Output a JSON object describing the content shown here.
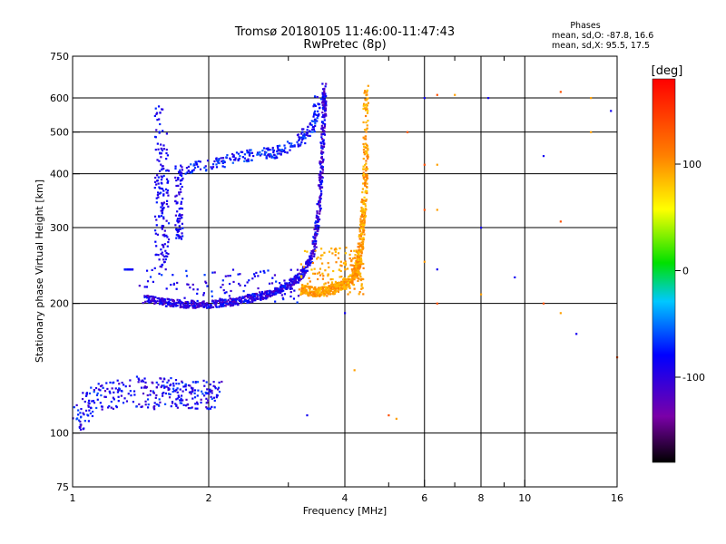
{
  "chart_data": {
    "type": "scatter",
    "title": "Tromsø 20180105 11:46:00-11:47:43",
    "subtitle": "RwPretec (8p)",
    "xlabel": "Frequency [MHz]",
    "ylabel": "Stationary phase Virtual Height [km]",
    "x_scale": "log",
    "y_scale": "log",
    "xlim": [
      1,
      16
    ],
    "ylim": [
      75,
      750
    ],
    "x_ticks": [
      1,
      2,
      4,
      6,
      8,
      10,
      16
    ],
    "x_tick_labels": [
      "1",
      "2",
      "4",
      "6",
      "8",
      "10",
      "16"
    ],
    "x_grid": [
      2,
      4,
      6,
      8,
      10
    ],
    "x_grid_minor": [
      3,
      5,
      7,
      9
    ],
    "y_ticks": [
      75,
      100,
      200,
      300,
      400,
      500,
      600,
      750
    ],
    "y_tick_labels": [
      "75",
      "100",
      "200",
      "300",
      "400",
      "500",
      "600",
      "750"
    ],
    "y_grid": [
      100,
      200,
      300,
      400,
      500,
      600
    ],
    "grid": true,
    "stats": {
      "heading": "Phases",
      "line_o": "mean, sd,O: -87.8, 16.6",
      "line_x": "mean, sd,X:  95.5, 17.5"
    },
    "colorbar": {
      "label": "[deg]",
      "range": [
        -180,
        180
      ],
      "ticks": [
        100,
        0,
        -100
      ],
      "tick_labels": [
        "100",
        "0",
        "-100"
      ]
    },
    "series_o": {
      "phase_mean": -87.8,
      "trace_e": {
        "f": [
          1.0,
          1.05,
          1.1,
          1.2,
          1.3,
          1.4,
          1.5,
          1.6,
          1.7,
          1.8,
          1.9,
          2.0,
          2.1
        ],
        "h": [
          107,
          112,
          118,
          122,
          123,
          125,
          123,
          125,
          124,
          123,
          123,
          123,
          123
        ]
      },
      "trace_f2": {
        "f": [
          1.45,
          1.6,
          1.8,
          2.0,
          2.2,
          2.4,
          2.6,
          2.8,
          3.0,
          3.2,
          3.4,
          3.5,
          3.55,
          3.6,
          3.6
        ],
        "h": [
          205,
          201,
          199,
          199,
          201,
          204,
          208,
          213,
          220,
          232,
          260,
          320,
          420,
          550,
          640
        ]
      },
      "trace_upper": {
        "f": [
          1.8,
          2.0,
          2.2,
          2.4,
          2.6,
          2.8,
          3.0,
          3.2,
          3.4,
          3.5
        ],
        "h": [
          410,
          420,
          430,
          440,
          448,
          448,
          460,
          480,
          520,
          600
        ]
      },
      "vertical_columns": [
        {
          "f": 1.33,
          "h_min": 240,
          "h_max": 240
        },
        {
          "f": 1.55,
          "h_min": 240,
          "h_max": 590
        },
        {
          "f": 1.6,
          "h_min": 240,
          "h_max": 500
        },
        {
          "f": 1.72,
          "h_min": 280,
          "h_max": 420
        }
      ]
    },
    "series_x": {
      "phase_mean": 95.5,
      "trace_f2": {
        "f": [
          3.2,
          3.4,
          3.6,
          3.8,
          4.0,
          4.2,
          4.3,
          4.35,
          4.4,
          4.45,
          4.45
        ],
        "h": [
          215,
          213,
          213,
          217,
          222,
          232,
          250,
          280,
          330,
          420,
          630
        ]
      }
    },
    "scattered_points": [
      {
        "f": 6.0,
        "h": 600
      },
      {
        "f": 6.4,
        "h": 610
      },
      {
        "f": 7.0,
        "h": 610
      },
      {
        "f": 8.3,
        "h": 600
      },
      {
        "f": 12.0,
        "h": 620
      },
      {
        "f": 14.0,
        "h": 600
      },
      {
        "f": 15.5,
        "h": 560
      },
      {
        "f": 6.0,
        "h": 420
      },
      {
        "f": 6.4,
        "h": 420
      },
      {
        "f": 11.0,
        "h": 440
      },
      {
        "f": 6.0,
        "h": 330
      },
      {
        "f": 6.4,
        "h": 330
      },
      {
        "f": 8.0,
        "h": 300
      },
      {
        "f": 12.0,
        "h": 310
      },
      {
        "f": 6.0,
        "h": 250
      },
      {
        "f": 6.4,
        "h": 240
      },
      {
        "f": 6.4,
        "h": 200
      },
      {
        "f": 8.0,
        "h": 210
      },
      {
        "f": 9.5,
        "h": 230
      },
      {
        "f": 11.0,
        "h": 200
      },
      {
        "f": 12.0,
        "h": 190
      },
      {
        "f": 13.0,
        "h": 170
      },
      {
        "f": 16.0,
        "h": 150
      },
      {
        "f": 4.2,
        "h": 140
      },
      {
        "f": 3.3,
        "h": 110
      },
      {
        "f": 5.0,
        "h": 110
      },
      {
        "f": 5.2,
        "h": 108
      },
      {
        "f": 4.0,
        "h": 190
      },
      {
        "f": 5.5,
        "h": 500
      },
      {
        "f": 14.0,
        "h": 500
      }
    ]
  }
}
